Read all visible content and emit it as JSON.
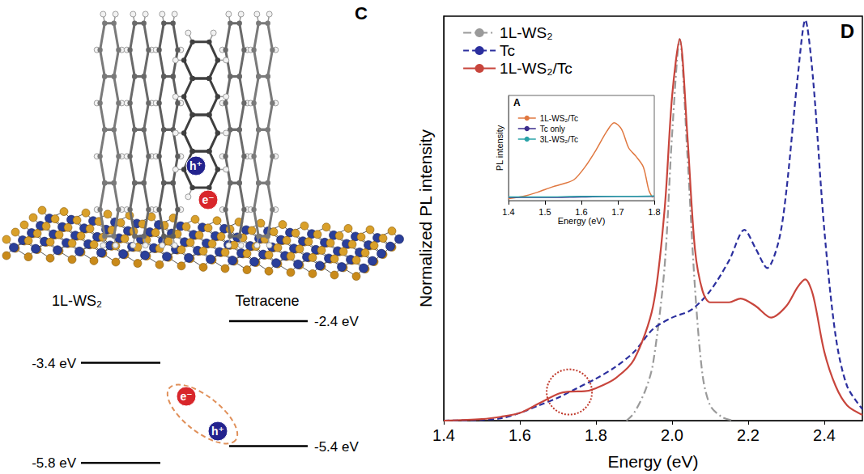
{
  "panel_c": {
    "letter": "C",
    "hole_label": "h⁺",
    "electron_label": "e⁻",
    "materials": [
      {
        "name": "1L-WS₂",
        "levels": [
          {
            "value": -3.4,
            "label": "-3.4 eV"
          },
          {
            "value": -5.8,
            "label": "-5.8 eV"
          }
        ]
      },
      {
        "name": "Tetracene",
        "levels": [
          {
            "value": -2.4,
            "label": "-2.4 eV"
          },
          {
            "value": -5.4,
            "label": "-5.4 eV"
          }
        ]
      }
    ]
  },
  "chart_data": [
    {
      "type": "line",
      "letter": "D",
      "x_label": "Energy (eV)",
      "y_label": "Normalized PL intensity",
      "xlim": [
        1.4,
        2.5
      ],
      "xticks": [
        1.4,
        1.6,
        1.8,
        {
          "value": 2,
          "label": "2.0"
        },
        2.2,
        2.4
      ],
      "ylim": [
        0,
        1.06
      ],
      "tick_labels": "x",
      "legend": "top-left",
      "marked_point": {
        "x": 1.73,
        "y": 0.075
      },
      "series": [
        {
          "name": "1L-WS₂",
          "color": "#9a9a9a",
          "line_style": "dashdot",
          "x": [
            1.88,
            1.9,
            1.93,
            1.95,
            1.98,
            2.0,
            2.02,
            2.04,
            2.06,
            2.08,
            2.1,
            2.13,
            2.16
          ],
          "values": [
            0,
            0.02,
            0.08,
            0.15,
            0.4,
            0.75,
            1.0,
            0.7,
            0.35,
            0.12,
            0.04,
            0.01,
            0
          ]
        },
        {
          "name": "Tc",
          "color": "#2b2f9e",
          "line_style": "dashed",
          "x": [
            1.4,
            1.5,
            1.55,
            1.6,
            1.65,
            1.7,
            1.75,
            1.8,
            1.85,
            1.9,
            1.95,
            2.0,
            2.05,
            2.1,
            2.15,
            2.19,
            2.22,
            2.25,
            2.28,
            2.3,
            2.33,
            2.35,
            2.37,
            2.4,
            2.43,
            2.46,
            2.5
          ],
          "values": [
            0,
            0.002,
            0.006,
            0.02,
            0.04,
            0.06,
            0.085,
            0.11,
            0.14,
            0.18,
            0.24,
            0.27,
            0.29,
            0.34,
            0.42,
            0.5,
            0.45,
            0.4,
            0.47,
            0.6,
            0.9,
            1.05,
            0.9,
            0.5,
            0.22,
            0.09,
            0.03
          ]
        },
        {
          "name": "1L-WS₂/Tc",
          "color": "#c8453c",
          "line_style": "solid",
          "x": [
            1.4,
            1.5,
            1.55,
            1.6,
            1.65,
            1.7,
            1.73,
            1.77,
            1.8,
            1.85,
            1.9,
            1.95,
            1.98,
            2.0,
            2.02,
            2.04,
            2.06,
            2.08,
            2.1,
            2.15,
            2.18,
            2.22,
            2.26,
            2.3,
            2.33,
            2.35,
            2.37,
            2.4,
            2.43,
            2.46,
            2.5
          ],
          "values": [
            0,
            0.004,
            0.01,
            0.02,
            0.045,
            0.07,
            0.076,
            0.077,
            0.085,
            0.11,
            0.16,
            0.3,
            0.55,
            0.85,
            1.0,
            0.75,
            0.45,
            0.34,
            0.31,
            0.31,
            0.32,
            0.3,
            0.27,
            0.3,
            0.35,
            0.37,
            0.33,
            0.18,
            0.09,
            0.04,
            0.015
          ]
        }
      ]
    },
    {
      "type": "line",
      "letter": "A",
      "x_label": "Energy (eV)",
      "y_label": "PL intensity",
      "xlim": [
        1.4,
        1.8
      ],
      "xticks": [
        1.4,
        1.5,
        1.6,
        1.7,
        1.8
      ],
      "ylim": [
        0,
        1
      ],
      "tick_labels": "x",
      "legend": "top-left",
      "series": [
        {
          "name": "1L-WS₂/Tc",
          "color": "#e07840",
          "line_style": "solid",
          "x": [
            1.4,
            1.44,
            1.48,
            1.52,
            1.55,
            1.58,
            1.61,
            1.64,
            1.67,
            1.69,
            1.71,
            1.73,
            1.75,
            1.77,
            1.785,
            1.795
          ],
          "values": [
            0.02,
            0.04,
            0.08,
            0.13,
            0.16,
            0.2,
            0.32,
            0.48,
            0.66,
            0.74,
            0.68,
            0.5,
            0.42,
            0.32,
            0.1,
            0.03
          ]
        },
        {
          "name": "Tc only",
          "color": "#3b2c8c",
          "line_style": "solid",
          "x": [
            1.4,
            1.5,
            1.6,
            1.7,
            1.8
          ],
          "values": [
            0.03,
            0.03,
            0.035,
            0.04,
            0.04
          ]
        },
        {
          "name": "3L-WS₂/Tc",
          "color": "#2aa3a8",
          "line_style": "solid",
          "x": [
            1.4,
            1.5,
            1.6,
            1.7,
            1.8
          ],
          "values": [
            0.035,
            0.035,
            0.04,
            0.04,
            0.045
          ]
        }
      ]
    }
  ]
}
